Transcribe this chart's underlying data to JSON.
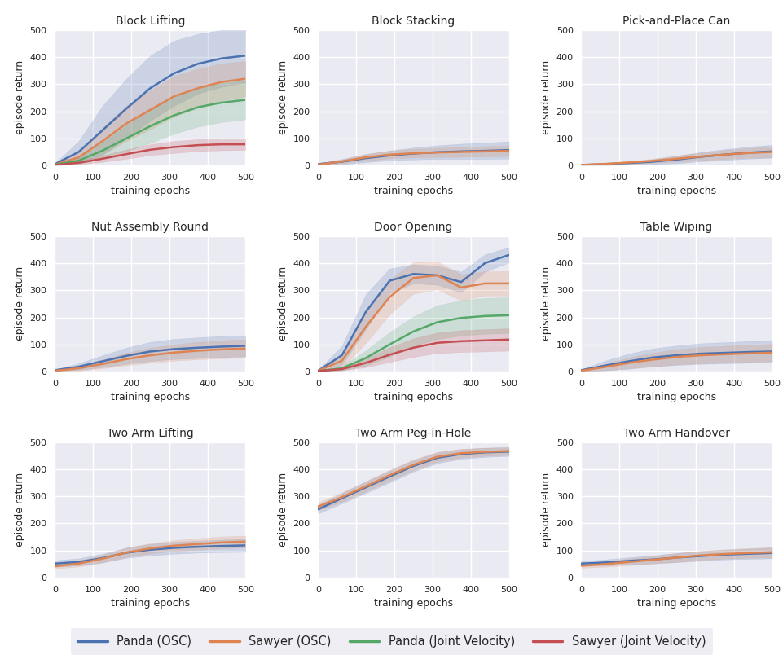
{
  "titles": [
    "Block Lifting",
    "Block Stacking",
    "Pick-and-Place Can",
    "Nut Assembly Round",
    "Door Opening",
    "Table Wiping",
    "Two Arm Lifting",
    "Two Arm Peg-in-Hole",
    "Two Arm Handover"
  ],
  "legend_labels": [
    "Panda (OSC)",
    "Sawyer (OSC)",
    "Panda (Joint Velocity)",
    "Sawyer (Joint Velocity)"
  ],
  "colors": [
    "#4c72b0",
    "#dd8452",
    "#55a868",
    "#c44e52"
  ],
  "xlabel": "training epochs",
  "ylabel": "episode return",
  "xlim": [
    0,
    500
  ],
  "ylim": [
    0,
    500
  ],
  "xticks": [
    0,
    100,
    200,
    300,
    400,
    500
  ],
  "yticks": [
    0,
    100,
    200,
    300,
    400,
    500
  ],
  "figsize": [
    9.62,
    8.15
  ],
  "dpi": 100,
  "alpha_fill": 0.2,
  "curves": {
    "Block Lifting": {
      "blue": {
        "mean": [
          5,
          50,
          130,
          210,
          285,
          340,
          375,
          395,
          405
        ],
        "std": [
          3,
          40,
          90,
          110,
          120,
          120,
          110,
          105,
          100
        ]
      },
      "orange": {
        "mean": [
          3,
          30,
          90,
          155,
          205,
          255,
          285,
          308,
          320
        ],
        "std": [
          2,
          20,
          50,
          65,
          72,
          75,
          72,
          68,
          65
        ]
      },
      "green": {
        "mean": [
          3,
          18,
          55,
          100,
          145,
          185,
          215,
          232,
          242
        ],
        "std": [
          2,
          12,
          30,
          48,
          62,
          68,
          72,
          72,
          72
        ]
      },
      "red": {
        "mean": [
          2,
          10,
          25,
          42,
          58,
          68,
          75,
          78,
          78
        ],
        "std": [
          1,
          6,
          12,
          17,
          20,
          22,
          22,
          22,
          21
        ]
      }
    },
    "Block Stacking": {
      "blue": {
        "mean": [
          5,
          14,
          27,
          37,
          44,
          49,
          52,
          54,
          57
        ],
        "std": [
          3,
          10,
          15,
          18,
          22,
          25,
          28,
          30,
          32
        ]
      },
      "orange": {
        "mean": [
          3,
          15,
          30,
          40,
          45,
          48,
          50,
          52,
          54
        ],
        "std": [
          2,
          7,
          12,
          14,
          16,
          17,
          18,
          19,
          19
        ]
      },
      "green": {
        "mean": [
          0,
          0,
          0,
          0,
          0,
          0,
          0,
          0,
          0
        ],
        "std": [
          0,
          0,
          0,
          0,
          0,
          0,
          0,
          0,
          0
        ]
      },
      "red": {
        "mean": [
          0,
          0,
          0,
          0,
          0,
          0,
          0,
          0,
          0
        ],
        "std": [
          0,
          0,
          0,
          0,
          0,
          0,
          0,
          0,
          0
        ]
      }
    },
    "Pick-and-Place Can": {
      "blue": {
        "mean": [
          2,
          5,
          9,
          14,
          22,
          32,
          40,
          47,
          52
        ],
        "std": [
          1,
          4,
          6,
          9,
          14,
          17,
          20,
          22,
          24
        ]
      },
      "orange": {
        "mean": [
          2,
          6,
          11,
          17,
          25,
          33,
          40,
          46,
          50
        ],
        "std": [
          1,
          3,
          5,
          8,
          11,
          14,
          16,
          18,
          20
        ]
      },
      "green": {
        "mean": [
          0,
          0,
          0,
          0,
          0,
          0,
          0,
          0,
          0
        ],
        "std": [
          0,
          0,
          0,
          0,
          0,
          0,
          0,
          0,
          0
        ]
      },
      "red": {
        "mean": [
          0,
          0,
          0,
          0,
          0,
          0,
          0,
          0,
          0
        ],
        "std": [
          0,
          0,
          0,
          0,
          0,
          0,
          0,
          0,
          0
        ]
      }
    },
    "Nut Assembly Round": {
      "blue": {
        "mean": [
          5,
          18,
          38,
          58,
          74,
          83,
          88,
          92,
          95
        ],
        "std": [
          3,
          12,
          22,
          30,
          35,
          37,
          38,
          39,
          39
        ]
      },
      "orange": {
        "mean": [
          3,
          12,
          28,
          46,
          60,
          70,
          77,
          82,
          85
        ],
        "std": [
          2,
          9,
          16,
          23,
          28,
          30,
          32,
          33,
          34
        ]
      },
      "green": {
        "mean": [
          0,
          0,
          0,
          0,
          0,
          0,
          0,
          0,
          0
        ],
        "std": [
          0,
          0,
          0,
          0,
          0,
          0,
          0,
          0,
          0
        ]
      },
      "red": {
        "mean": [
          0,
          0,
          0,
          0,
          0,
          0,
          0,
          0,
          0
        ],
        "std": [
          0,
          0,
          0,
          0,
          0,
          0,
          0,
          0,
          0
        ]
      }
    },
    "Door Opening": {
      "blue": {
        "mean": [
          3,
          60,
          220,
          335,
          360,
          355,
          330,
          400,
          430
        ],
        "std": [
          2,
          35,
          65,
          45,
          35,
          35,
          38,
          32,
          28
        ]
      },
      "orange": {
        "mean": [
          3,
          40,
          165,
          275,
          345,
          355,
          310,
          325,
          325
        ],
        "std": [
          2,
          28,
          60,
          65,
          58,
          52,
          48,
          45,
          45
        ]
      },
      "green": {
        "mean": [
          2,
          12,
          50,
          100,
          148,
          182,
          198,
          205,
          208
        ],
        "std": [
          2,
          8,
          28,
          45,
          55,
          62,
          65,
          66,
          66
        ]
      },
      "red": {
        "mean": [
          2,
          9,
          32,
          62,
          88,
          106,
          112,
          115,
          118
        ],
        "std": [
          1,
          5,
          16,
          27,
          34,
          38,
          40,
          41,
          41
        ]
      }
    },
    "Table Wiping": {
      "blue": {
        "mean": [
          5,
          22,
          38,
          52,
          60,
          66,
          69,
          72,
          74
        ],
        "std": [
          3,
          18,
          28,
          33,
          36,
          38,
          39,
          40,
          40
        ]
      },
      "orange": {
        "mean": [
          3,
          17,
          32,
          44,
          54,
          60,
          64,
          67,
          70
        ],
        "std": [
          2,
          12,
          20,
          25,
          28,
          30,
          31,
          32,
          32
        ]
      },
      "green": {
        "mean": [
          0,
          0,
          0,
          0,
          0,
          0,
          0,
          0,
          0
        ],
        "std": [
          0,
          0,
          0,
          0,
          0,
          0,
          0,
          0,
          0
        ]
      },
      "red": {
        "mean": [
          0,
          0,
          0,
          0,
          0,
          0,
          0,
          0,
          0
        ],
        "std": [
          0,
          0,
          0,
          0,
          0,
          0,
          0,
          0,
          0
        ]
      }
    },
    "Two Arm Lifting": {
      "blue": {
        "mean": [
          52,
          58,
          72,
          92,
          103,
          110,
          114,
          117,
          119
        ],
        "std": [
          12,
          13,
          16,
          19,
          21,
          22,
          22,
          23,
          24
        ]
      },
      "orange": {
        "mean": [
          42,
          52,
          70,
          93,
          108,
          118,
          124,
          130,
          133
        ],
        "std": [
          9,
          11,
          14,
          17,
          19,
          20,
          21,
          22,
          22
        ]
      },
      "green": {
        "mean": [
          0,
          0,
          0,
          0,
          0,
          0,
          0,
          0,
          0
        ],
        "std": [
          0,
          0,
          0,
          0,
          0,
          0,
          0,
          0,
          0
        ]
      },
      "red": {
        "mean": [
          0,
          0,
          0,
          0,
          0,
          0,
          0,
          0,
          0
        ],
        "std": [
          0,
          0,
          0,
          0,
          0,
          0,
          0,
          0,
          0
        ]
      }
    },
    "Two Arm Peg-in-Hole": {
      "blue": {
        "mean": [
          252,
          293,
          333,
          373,
          412,
          442,
          456,
          462,
          465
        ],
        "std": [
          16,
          19,
          21,
          22,
          21,
          20,
          18,
          17,
          16
        ]
      },
      "orange": {
        "mean": [
          262,
          297,
          337,
          378,
          416,
          446,
          459,
          464,
          467
        ],
        "std": [
          15,
          17,
          19,
          20,
          20,
          18,
          16,
          15,
          14
        ]
      },
      "green": {
        "mean": [
          0,
          0,
          0,
          0,
          0,
          0,
          0,
          0,
          0
        ],
        "std": [
          0,
          0,
          0,
          0,
          0,
          0,
          0,
          0,
          0
        ]
      },
      "red": {
        "mean": [
          0,
          0,
          0,
          0,
          0,
          0,
          0,
          0,
          0
        ],
        "std": [
          0,
          0,
          0,
          0,
          0,
          0,
          0,
          0,
          0
        ]
      }
    },
    "Two Arm Handover": {
      "blue": {
        "mean": [
          52,
          56,
          62,
          67,
          74,
          80,
          85,
          88,
          91
        ],
        "std": [
          9,
          11,
          13,
          15,
          17,
          18,
          18,
          19,
          20
        ]
      },
      "orange": {
        "mean": [
          44,
          50,
          58,
          66,
          74,
          82,
          87,
          91,
          94
        ],
        "std": [
          8,
          10,
          12,
          14,
          16,
          17,
          17,
          18,
          19
        ]
      },
      "green": {
        "mean": [
          0,
          0,
          0,
          0,
          0,
          0,
          0,
          0,
          0
        ],
        "std": [
          0,
          0,
          0,
          0,
          0,
          0,
          0,
          0,
          0
        ]
      },
      "red": {
        "mean": [
          0,
          0,
          0,
          0,
          0,
          0,
          0,
          0,
          0
        ],
        "std": [
          0,
          0,
          0,
          0,
          0,
          0,
          0,
          0,
          0
        ]
      }
    }
  }
}
